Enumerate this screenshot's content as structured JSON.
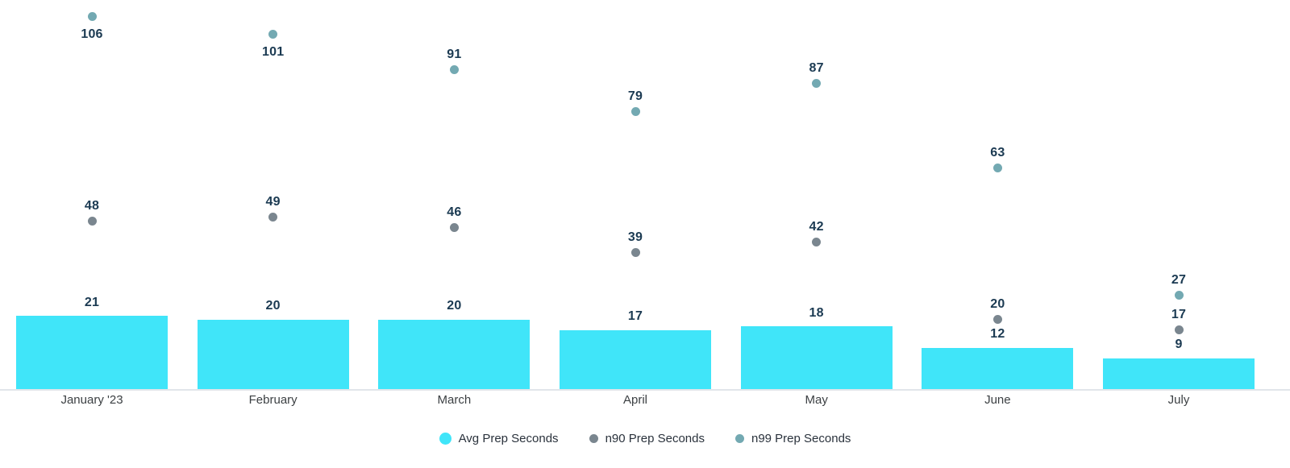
{
  "chart_data": {
    "type": "bar",
    "title": "",
    "xlabel": "",
    "ylabel": "",
    "categories": [
      "January '23",
      "February",
      "March",
      "April",
      "May",
      "June",
      "July"
    ],
    "series": [
      {
        "name": "Avg Prep Seconds",
        "render": "bar",
        "color": "#40E5F9",
        "values": [
          21,
          20,
          20,
          17,
          18,
          12,
          9
        ]
      },
      {
        "name": "n90 Prep Seconds",
        "render": "point",
        "color": "#7A868F",
        "values": [
          48,
          49,
          46,
          39,
          42,
          20,
          17
        ]
      },
      {
        "name": "n99 Prep Seconds",
        "render": "point",
        "color": "#73A9B2",
        "values": [
          106,
          101,
          91,
          79,
          87,
          63,
          27
        ]
      }
    ],
    "ylim": [
      0,
      110
    ],
    "grid": false,
    "y_axis_shown": false,
    "value_labels_shown": true,
    "legend_position": "bottom"
  },
  "colors": {
    "background": "#FFFFFF",
    "value_label": "#1B3A52",
    "axis_label": "#3C4043",
    "legend_text": "#2A323C",
    "axis_line": "#E1E5EA"
  }
}
